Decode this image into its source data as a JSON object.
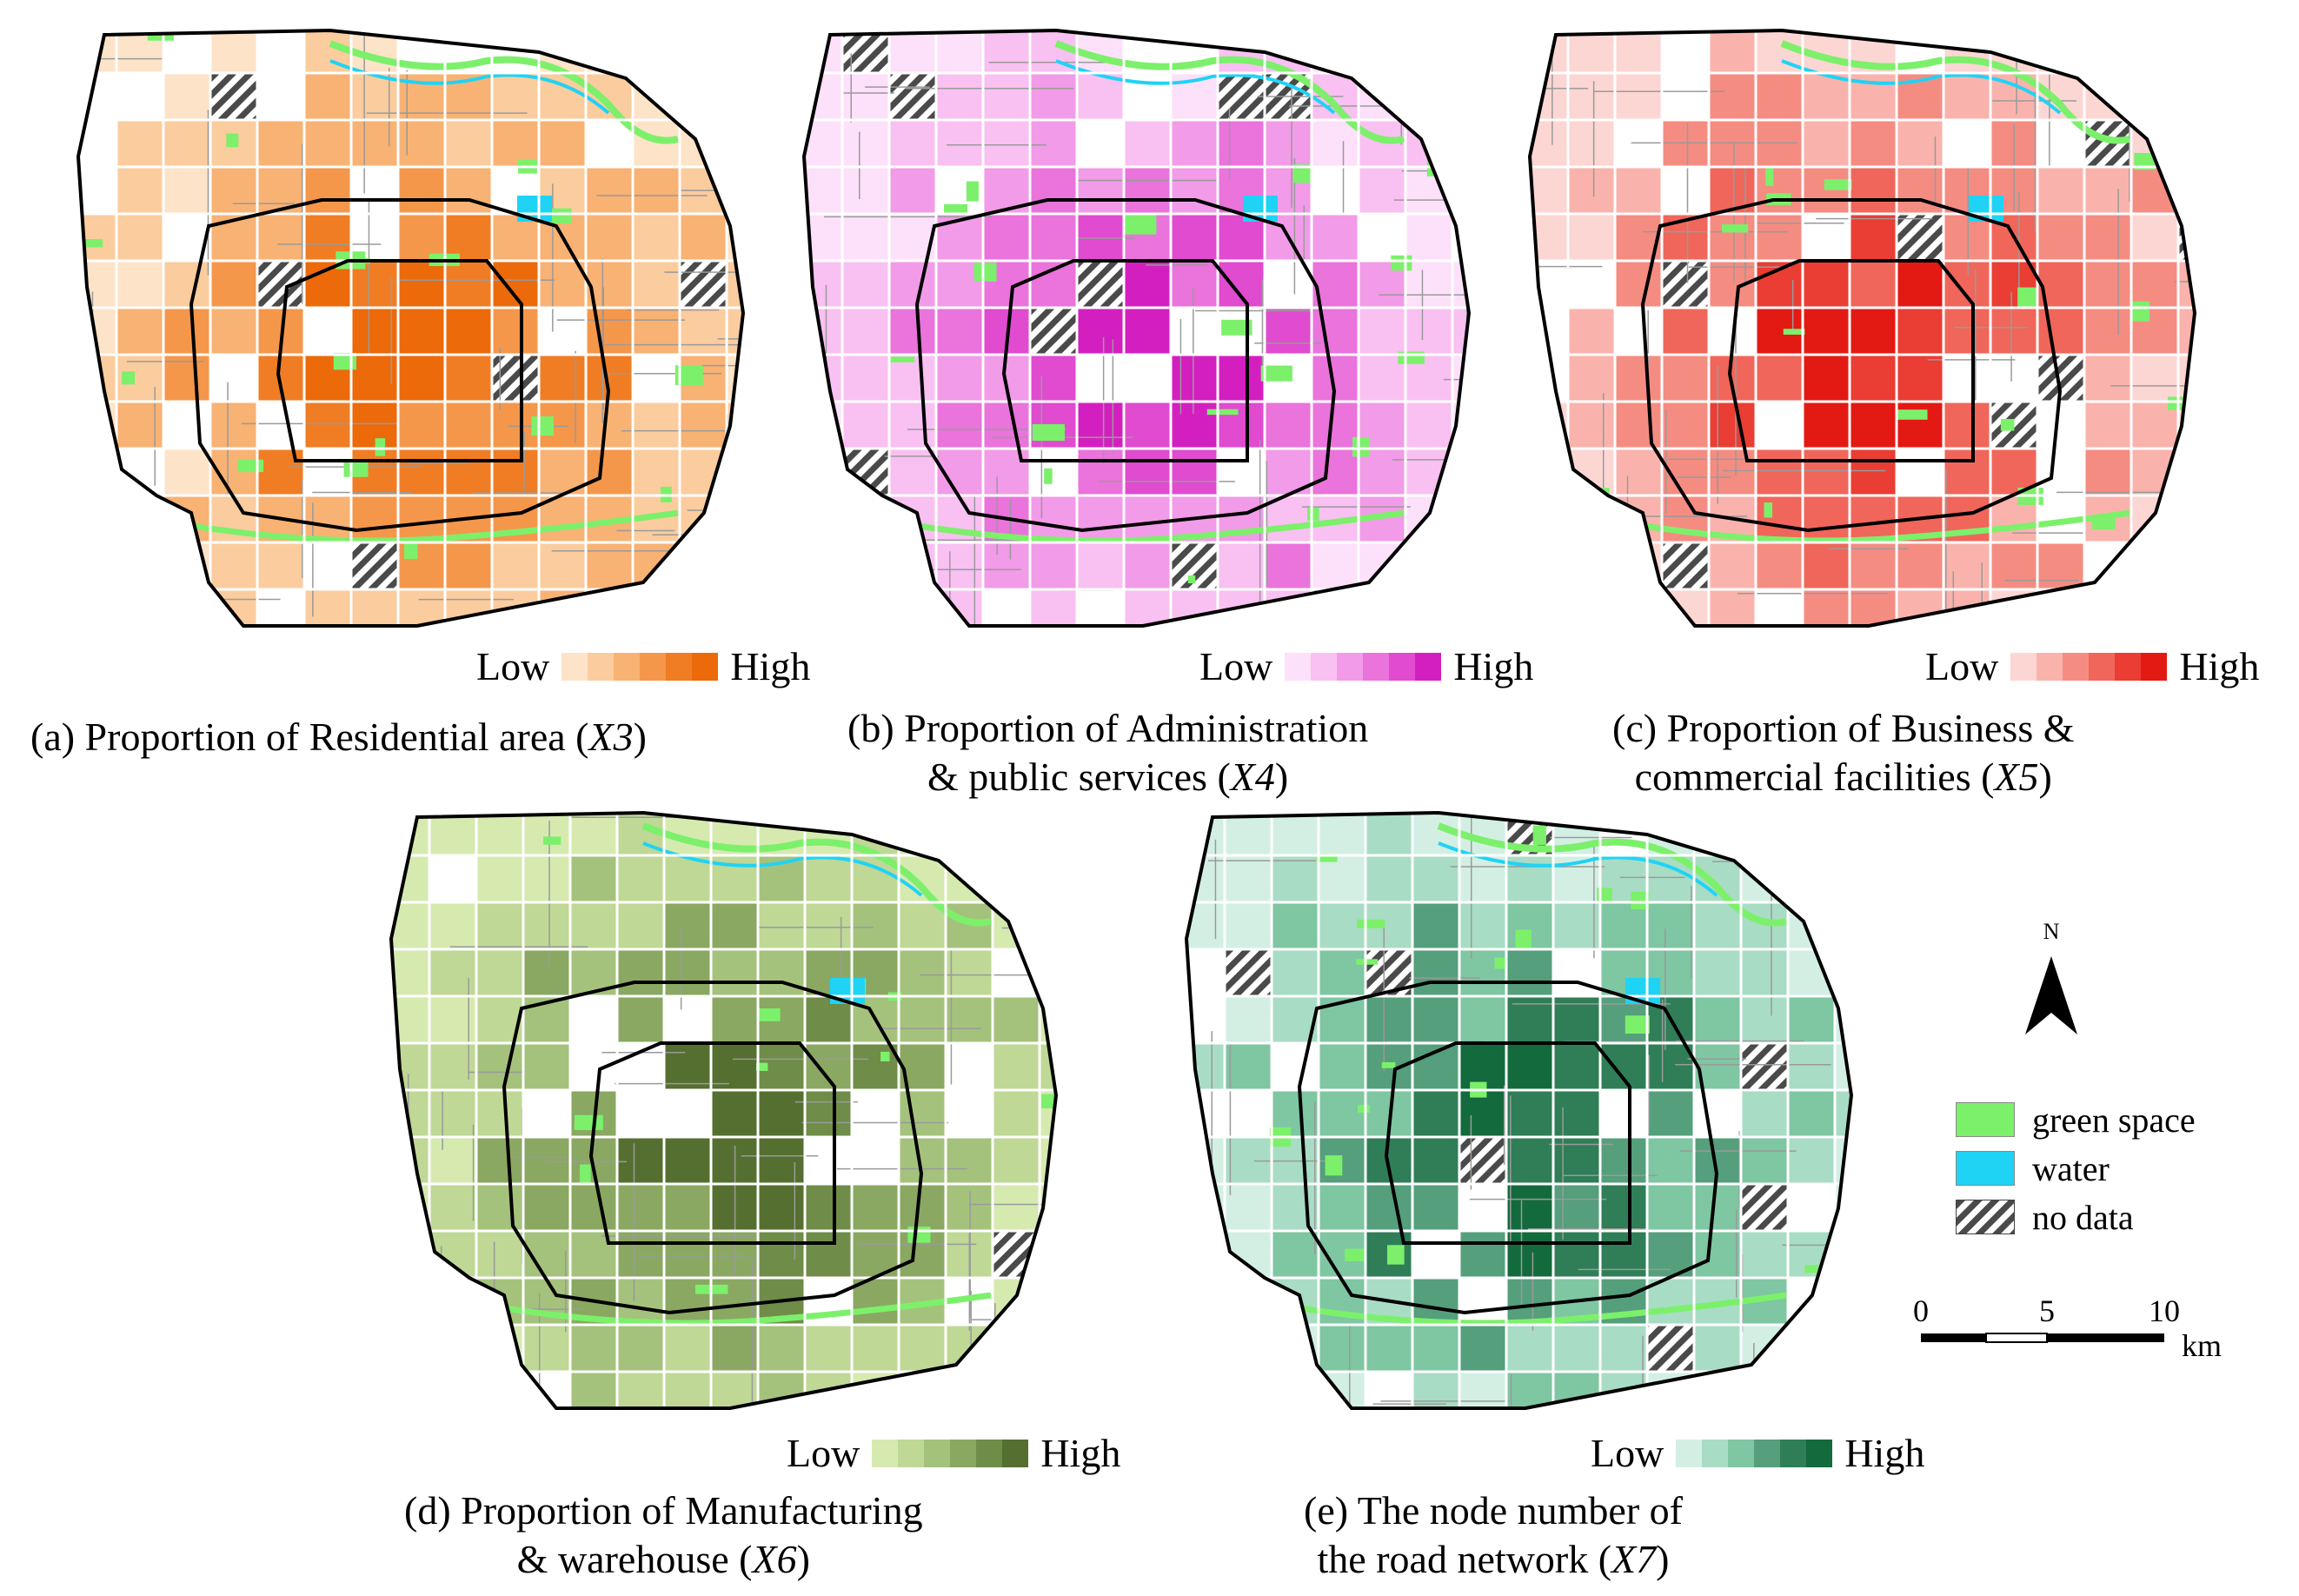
{
  "colors": {
    "green_space": "#7cf06b",
    "water": "#1fd3f5",
    "nodata": "#5a5a5a",
    "road": "#9a9a9a",
    "grid_line": "#ffffff",
    "boundary": "#000000"
  },
  "panels": [
    {
      "id": "a",
      "caption_prefix": "(a) Proportion of Residential area (",
      "caption_var": "X3",
      "caption_suffix": ")",
      "legend_low": "Low",
      "legend_high": "High",
      "ramp": [
        "#fde3c8",
        "#fbcc9e",
        "#f8b274",
        "#f5974b",
        "#f07d24",
        "#ec6a0a"
      ]
    },
    {
      "id": "b",
      "caption_line1": "(b) Proportion of Administration",
      "caption_line2_prefix": "& public services  (",
      "caption_var": "X4",
      "caption_suffix": ")",
      "legend_low": "Low",
      "legend_high": "High",
      "ramp": [
        "#fde0fa",
        "#f9c0f2",
        "#f29be8",
        "#ea73dc",
        "#e04bcf",
        "#d41fc0"
      ]
    },
    {
      "id": "c",
      "caption_line1": "(c)  Proportion of Business &",
      "caption_line2_prefix": "commercial  facilities (",
      "caption_var": "X5",
      "caption_suffix": ")",
      "legend_low": "Low",
      "legend_high": "High",
      "ramp": [
        "#fcd6d3",
        "#f9b3ac",
        "#f58c82",
        "#f0665a",
        "#ea3d33",
        "#e31a13"
      ]
    },
    {
      "id": "d",
      "caption_line1": "(d)  Proportion of Manufacturing",
      "caption_line2_prefix": "& warehouse  (",
      "caption_var": "X6",
      "caption_suffix": ")",
      "legend_low": "Low",
      "legend_high": "High",
      "ramp": [
        "#d6eab0",
        "#bfd896",
        "#a5c27c",
        "#8aa862",
        "#6f8c48",
        "#556f30"
      ]
    },
    {
      "id": "e",
      "caption_line1": "(e)  The node number of",
      "caption_line2_prefix": "the road network  (",
      "caption_var": "X7",
      "caption_suffix": ")",
      "legend_low": "Low",
      "legend_high": "High",
      "ramp": [
        "#d3efe4",
        "#a9dcc4",
        "#7fc6a2",
        "#559f7c",
        "#2f7e57",
        "#136a3c"
      ]
    }
  ],
  "key": {
    "green_space_label": "green space",
    "water_label": "water",
    "nodata_label": "no data"
  },
  "north_label": "N",
  "scale": {
    "tick0": "0",
    "tick5": "5",
    "tick10": "10",
    "unit": "km"
  }
}
